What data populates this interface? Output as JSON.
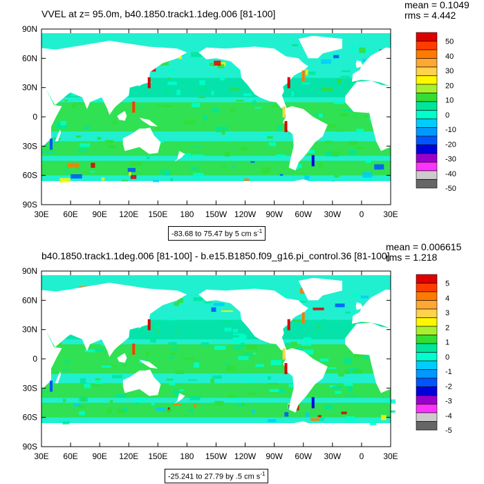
{
  "panels": [
    {
      "title": "VVEL at z=  95.0m, b40.1850.track1.1deg.006 [81-100]",
      "mean_text": "mean = 0.1049",
      "rms_text": "rms = 4.442",
      "range_text": "-83.68 to 75.47 by 5 cm s",
      "range_unit_exp": "-1",
      "colorbar_labels": [
        "50",
        "40",
        "30",
        "20",
        "10",
        "0",
        "-10",
        "-20",
        "-30",
        "-40",
        "-50"
      ]
    },
    {
      "title": "b40.1850.track1.1deg.006 [81-100] - b.e15.B1850.f09_g16.pi_control.36 [81-100]",
      "mean_text": "mean = 0.006615",
      "rms_text": "rms = 1.218",
      "range_text": "-25.241 to 27.79 by .5 cm s",
      "range_unit_exp": "-1",
      "colorbar_labels": [
        "5",
        "4",
        "3",
        "2",
        "1",
        "0",
        "-1",
        "-2",
        "-3",
        "-4",
        "-5"
      ]
    }
  ],
  "lat_labels": [
    "90N",
    "60N",
    "30N",
    "0",
    "30S",
    "60S",
    "90S"
  ],
  "lon_labels": [
    "30E",
    "60E",
    "90E",
    "120E",
    "150E",
    "180",
    "150W",
    "120W",
    "90W",
    "60W",
    "30W",
    "0",
    "30E"
  ],
  "colorbar_colors": [
    "#dd0000",
    "#ff3c00",
    "#ff7a00",
    "#ffa733",
    "#ffd24d",
    "#fff700",
    "#a6f02e",
    "#33dd33",
    "#00e699",
    "#00ffcc",
    "#00ccff",
    "#0099ff",
    "#0055ff",
    "#0000dd",
    "#9900cc",
    "#ff33ff",
    "#cccccc",
    "#666666"
  ],
  "colors": {
    "ocean_base": "#00e0a0",
    "ocean_light": "#20f0d0",
    "land": "#ffffff",
    "green": "#33dd33"
  }
}
